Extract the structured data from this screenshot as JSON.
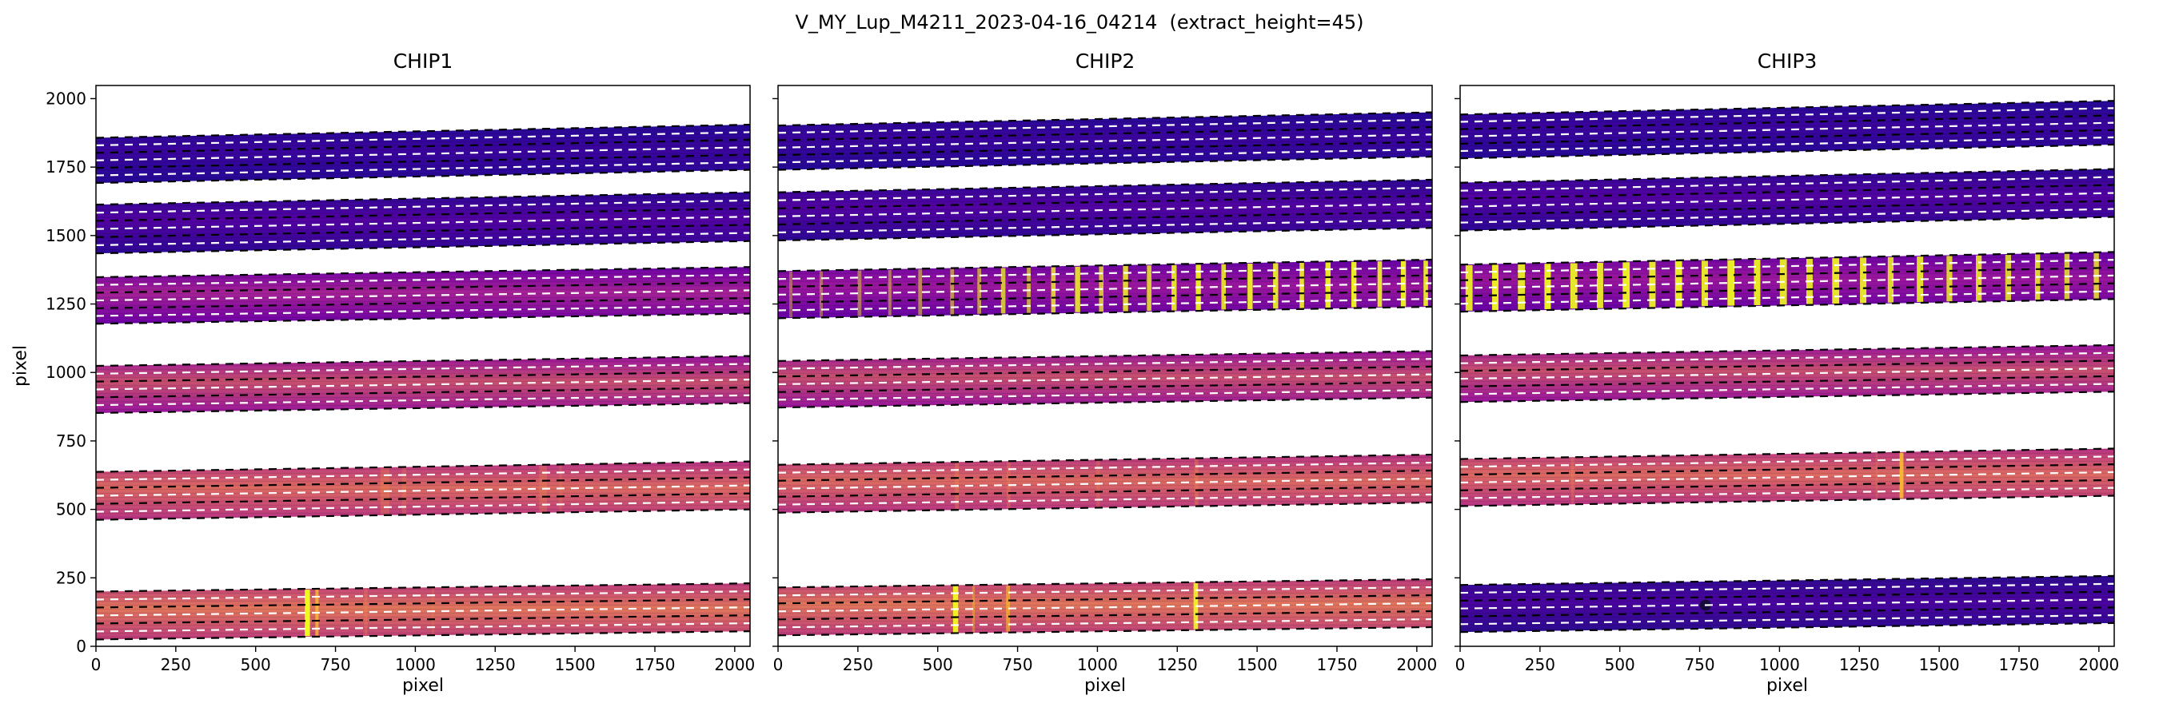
{
  "chart_data": {
    "type": "heatmap",
    "title": "V_MY_Lup_M4211_2023-04-16_04214  (extract_height=45)",
    "xlabel": "pixel",
    "ylabel": "pixel",
    "xlim": [
      0,
      2048
    ],
    "ylim": [
      0,
      2048
    ],
    "xticks": [
      0,
      250,
      500,
      750,
      1000,
      1250,
      1500,
      1750,
      2000
    ],
    "yticks": [
      0,
      250,
      500,
      750,
      1000,
      1250,
      1500,
      1750,
      2000
    ],
    "grid": false,
    "trace_black": [
      0,
      0.333,
      0.667,
      1
    ],
    "trace_white": [
      0.167,
      0.5,
      0.833
    ],
    "dash_colors": {
      "center": "#ffffff",
      "edges": "#000000"
    },
    "panels": [
      {
        "title": "CHIP1",
        "orders": [
          {
            "b0": 25,
            "b1": 55,
            "h": 175,
            "edge": "#bd3c7d",
            "mid": "#e2765c",
            "lines": [
              [
                662,
                16,
                1,
                "#f0f921"
              ],
              [
                692,
                10,
                0.75,
                "#fdc527"
              ],
              [
                845,
                10,
                0.3,
                "#f58b47"
              ],
              [
                1055,
                8,
                0.2,
                "#f58b47"
              ]
            ]
          },
          {
            "b0": 462,
            "b1": 500,
            "h": 175,
            "edge": "#b73384",
            "mid": "#dd6a62",
            "lines": [
              [
                905,
                28,
                0.3,
                "#f58b47"
              ],
              [
                965,
                14,
                0.25,
                "#f58b47"
              ],
              [
                1400,
                24,
                0.3,
                "#f58b47"
              ],
              [
                1455,
                10,
                0.2,
                "#f58b47"
              ]
            ]
          },
          {
            "b0": 852,
            "b1": 888,
            "h": 172,
            "edge": "#99149e",
            "mid": "#c8506f",
            "lines": []
          },
          {
            "b0": 1178,
            "b1": 1215,
            "h": 170,
            "edge": "#6e00a8",
            "mid": "#a62296",
            "lines": []
          },
          {
            "b0": 1435,
            "b1": 1480,
            "h": 178,
            "edge": "#2d0795",
            "mid": "#5302a3",
            "lines": []
          },
          {
            "b0": 1692,
            "b1": 1740,
            "h": 165,
            "edge": "#250996",
            "mid": "#3b049e",
            "lines": []
          }
        ]
      },
      {
        "title": "CHIP2",
        "orders": [
          {
            "b0": 40,
            "b1": 70,
            "h": 175,
            "edge": "#bd3c7d",
            "mid": "#e2765c",
            "lines": [
              [
                556,
                16,
                0.95,
                "#f0f921"
              ],
              [
                612,
                8,
                0.4,
                "#fdc527"
              ],
              [
                720,
                12,
                0.6,
                "#fdc527"
              ],
              [
                1308,
                14,
                0.9,
                "#f0f921"
              ]
            ]
          },
          {
            "b0": 488,
            "b1": 525,
            "h": 175,
            "edge": "#b73384",
            "mid": "#dd6a62",
            "lines": [
              [
                560,
                12,
                0.35,
                "#f58b47"
              ],
              [
                722,
                12,
                0.3,
                "#f58b47"
              ],
              [
                1002,
                12,
                0.25,
                "#f58b47"
              ],
              [
                1310,
                12,
                0.35,
                "#f58b47"
              ]
            ]
          },
          {
            "b0": 872,
            "b1": 908,
            "h": 170,
            "edge": "#99149e",
            "mid": "#c8506f",
            "lines": []
          },
          {
            "b0": 1198,
            "b1": 1240,
            "h": 172,
            "edge": "#6500a7",
            "mid": "#9c179e",
            "lines": [
              [
                40,
                10,
                0.35
              ],
              [
                135,
                10,
                0.4
              ],
              [
                255,
                12,
                0.45
              ],
              [
                350,
                10,
                0.45
              ],
              [
                445,
                12,
                0.5
              ],
              [
                545,
                12,
                0.55
              ],
              [
                630,
                12,
                0.6
              ],
              [
                705,
                14,
                0.75
              ],
              [
                785,
                12,
                0.65
              ],
              [
                862,
                14,
                0.8
              ],
              [
                938,
                16,
                0.85
              ],
              [
                1012,
                14,
                0.75
              ],
              [
                1088,
                16,
                0.85
              ],
              [
                1162,
                14,
                0.8
              ],
              [
                1240,
                16,
                0.88
              ],
              [
                1316,
                16,
                0.92
              ],
              [
                1395,
                14,
                0.85
              ],
              [
                1478,
                16,
                0.92
              ],
              [
                1558,
                16,
                0.9
              ],
              [
                1640,
                14,
                0.88
              ],
              [
                1722,
                16,
                0.93
              ],
              [
                1803,
                16,
                0.95
              ],
              [
                1884,
                14,
                0.9
              ],
              [
                1958,
                16,
                0.95
              ],
              [
                2028,
                14,
                0.9
              ]
            ]
          },
          {
            "b0": 1482,
            "b1": 1528,
            "h": 176,
            "edge": "#2d0795",
            "mid": "#5302a3",
            "lines": []
          },
          {
            "b0": 1740,
            "b1": 1788,
            "h": 162,
            "edge": "#250996",
            "mid": "#3b049e",
            "lines": []
          }
        ]
      },
      {
        "title": "CHIP3",
        "orders": [
          {
            "b0": 52,
            "b1": 85,
            "h": 172,
            "edge": "#2c0b90",
            "mid": "#4b04a0",
            "lines": [],
            "spots": [
              [
                768,
                7,
                "#150b37",
                0.95
              ]
            ]
          },
          {
            "b0": 512,
            "b1": 550,
            "h": 172,
            "edge": "#b73384",
            "mid": "#dd6a62",
            "lines": [
              [
                352,
                10,
                0.3,
                "#f58b47"
              ],
              [
                1305,
                8,
                0.2,
                "#f58b47"
              ],
              [
                1382,
                12,
                0.85,
                "#fdc527"
              ]
            ]
          },
          {
            "b0": 892,
            "b1": 930,
            "h": 170,
            "edge": "#99149e",
            "mid": "#c8506f",
            "lines": []
          },
          {
            "b0": 1222,
            "b1": 1268,
            "h": 172,
            "edge": "#6500a7",
            "mid": "#9c179e",
            "lines": [
              [
                28,
                22,
                0.9
              ],
              [
                110,
                20,
                0.95
              ],
              [
                192,
                22,
                0.9
              ],
              [
                274,
                20,
                0.95
              ],
              [
                356,
                22,
                0.92
              ],
              [
                438,
                20,
                0.9
              ],
              [
                520,
                22,
                0.95
              ],
              [
                602,
                20,
                0.92
              ],
              [
                684,
                22,
                0.95
              ],
              [
                766,
                20,
                0.9
              ],
              [
                848,
                22,
                0.95
              ],
              [
                930,
                20,
                0.92
              ],
              [
                1012,
                22,
                0.9
              ],
              [
                1094,
                20,
                0.88
              ],
              [
                1176,
                22,
                0.92
              ],
              [
                1262,
                20,
                0.9
              ],
              [
                1348,
                18,
                0.85
              ],
              [
                1440,
                20,
                0.88
              ],
              [
                1532,
                18,
                0.82
              ],
              [
                1624,
                18,
                0.85
              ],
              [
                1716,
                18,
                0.8
              ],
              [
                1808,
                16,
                0.82
              ],
              [
                1900,
                16,
                0.78
              ],
              [
                1992,
                16,
                0.8
              ]
            ]
          },
          {
            "b0": 1518,
            "b1": 1568,
            "h": 175,
            "edge": "#2d0795",
            "mid": "#5302a3",
            "lines": []
          },
          {
            "b0": 1782,
            "b1": 1832,
            "h": 160,
            "edge": "#250996",
            "mid": "#3b049e",
            "lines": []
          }
        ]
      }
    ]
  }
}
